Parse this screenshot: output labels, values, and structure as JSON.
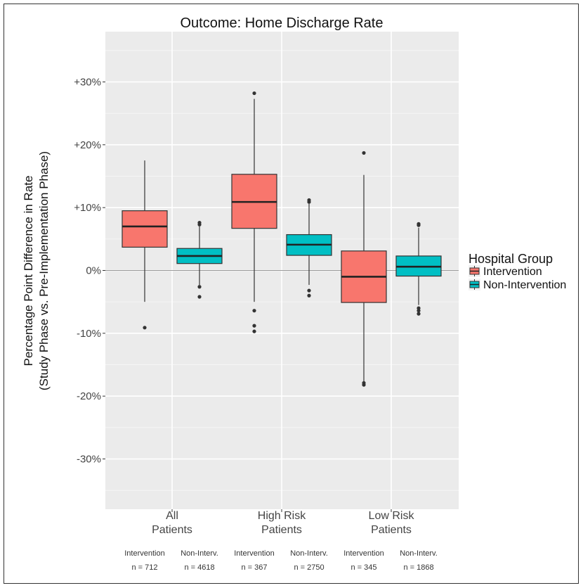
{
  "chart_data": {
    "type": "box",
    "title": "Outcome: Home Discharge Rate",
    "ylabel": [
      "Percentage Point Difference in Rate",
      "(Study Phase vs. Pre-Implementation Phase)"
    ],
    "xlabel": "",
    "ylim": [
      -38,
      38
    ],
    "yticks": [
      -30,
      -20,
      -10,
      0,
      10,
      20,
      30
    ],
    "ytick_labels": [
      "-30%",
      "-20%",
      "-10%",
      "0%",
      "+10%",
      "+20%",
      "+30%"
    ],
    "grid": true,
    "categories": [
      {
        "line1": "All",
        "line2": "Patients"
      },
      {
        "line1": "High Risk",
        "line2": "Patients"
      },
      {
        "line1": "Low Risk",
        "line2": "Patients"
      }
    ],
    "legend": {
      "title": "Hospital Group",
      "placement": "right",
      "entries": [
        "Intervention",
        "Non-Intervention"
      ]
    },
    "series": [
      {
        "name": "Intervention",
        "color": "#f8766d",
        "boxes": [
          {
            "whisker_low": -5.0,
            "q1": 3.7,
            "median": 7.0,
            "q3": 9.5,
            "whisker_high": 17.5,
            "outliers": [
              -9.1
            ]
          },
          {
            "whisker_low": -5.0,
            "q1": 6.7,
            "median": 10.9,
            "q3": 15.3,
            "whisker_high": 27.3,
            "outliers": [
              28.2,
              -6.4,
              -8.8,
              -9.7
            ]
          },
          {
            "whisker_low": -17.8,
            "q1": -5.1,
            "median": -1.0,
            "q3": 3.1,
            "whisker_high": 15.2,
            "outliers": [
              18.7,
              -17.9,
              -18.2
            ]
          }
        ]
      },
      {
        "name": "Non-Intervention",
        "color": "#00bfc4",
        "boxes": [
          {
            "whisker_low": -2.3,
            "q1": 1.1,
            "median": 2.3,
            "q3": 3.5,
            "whisker_high": 7.0,
            "outliers": [
              7.3,
              7.6,
              -2.6,
              -4.2
            ]
          },
          {
            "whisker_low": -2.3,
            "q1": 2.4,
            "median": 4.1,
            "q3": 5.7,
            "whisker_high": 10.6,
            "outliers": [
              10.9,
              11.2,
              -3.2,
              -4.0
            ]
          },
          {
            "whisker_low": -5.5,
            "q1": -0.9,
            "median": 0.6,
            "q3": 2.3,
            "whisker_high": 6.8,
            "outliers": [
              7.2,
              7.4,
              -6.0,
              -6.4,
              -6.9
            ]
          }
        ]
      }
    ],
    "sample_sizes": [
      {
        "group": "Intervention",
        "n": "n = 712"
      },
      {
        "group": "Non-Interv.",
        "n": "n = 4618"
      },
      {
        "group": "Intervention",
        "n": "n = 367"
      },
      {
        "group": "Non-Interv.",
        "n": "n = 2750"
      },
      {
        "group": "Intervention",
        "n": "n = 345"
      },
      {
        "group": "Non-Interv.",
        "n": "n = 1868"
      }
    ]
  }
}
